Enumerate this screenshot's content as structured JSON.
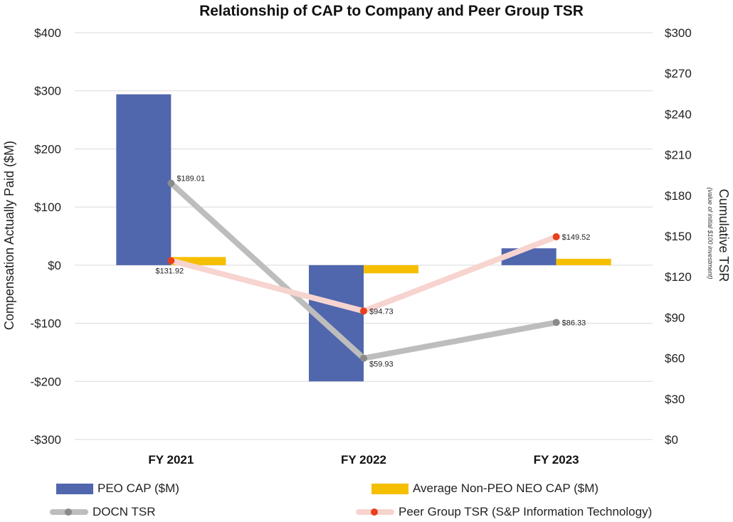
{
  "chart_data": {
    "type": "bar+line",
    "title": "Relationship of CAP to Company and Peer Group TSR",
    "categories": [
      "FY 2021",
      "FY 2022",
      "FY 2023"
    ],
    "left_axis": {
      "label": "Compensation Actually Paid ($M)",
      "ylim": [
        -300,
        400
      ],
      "ticks": [
        400,
        300,
        200,
        100,
        0,
        -100,
        -200,
        -300
      ],
      "tick_labels": [
        "$400",
        "$300",
        "$200",
        "$100",
        "$0",
        "-$100",
        "-$200",
        "-$300"
      ]
    },
    "right_axis": {
      "label": "Cumulative TSR",
      "sublabel": "(value of initial $100 investment)",
      "ylim": [
        0,
        300
      ],
      "ticks": [
        300,
        270,
        240,
        210,
        180,
        150,
        120,
        90,
        60,
        30,
        0
      ],
      "tick_labels": [
        "$300",
        "$270",
        "$240",
        "$210",
        "$180",
        "$150",
        "$120",
        "$90",
        "$60",
        "$30",
        "$0"
      ]
    },
    "bar_series": [
      {
        "name": "PEO CAP ($M)",
        "axis": "left",
        "color": "#5066ad",
        "values": [
          294,
          -200,
          29
        ]
      },
      {
        "name": "Average Non-PEO NEO CAP ($M)",
        "axis": "left",
        "color": "#f5bf00",
        "values": [
          14,
          -14,
          11
        ]
      }
    ],
    "line_series": [
      {
        "name": "DOCN TSR",
        "axis": "right",
        "color": "#bdbdbd",
        "marker_color": "#8a8a8a",
        "values": [
          189.01,
          59.93,
          86.33
        ],
        "labels": [
          "$189.01",
          "$59.93",
          "$86.33"
        ]
      },
      {
        "name": "Peer Group TSR (S&P Information Technology)",
        "axis": "right",
        "color": "#f7d4cf",
        "marker_color": "#e8401c",
        "values": [
          131.92,
          94.73,
          149.52
        ],
        "labels": [
          "$131.92",
          "$94.73",
          "$149.52"
        ]
      }
    ],
    "grid": true,
    "legend_position": "bottom"
  },
  "legend": {
    "peo_cap": "PEO CAP ($M)",
    "neo_cap": "Average Non-PEO NEO CAP ($M)",
    "docn_tsr": "DOCN TSR",
    "peer_tsr": "Peer Group TSR (S&P Information Technology)"
  }
}
